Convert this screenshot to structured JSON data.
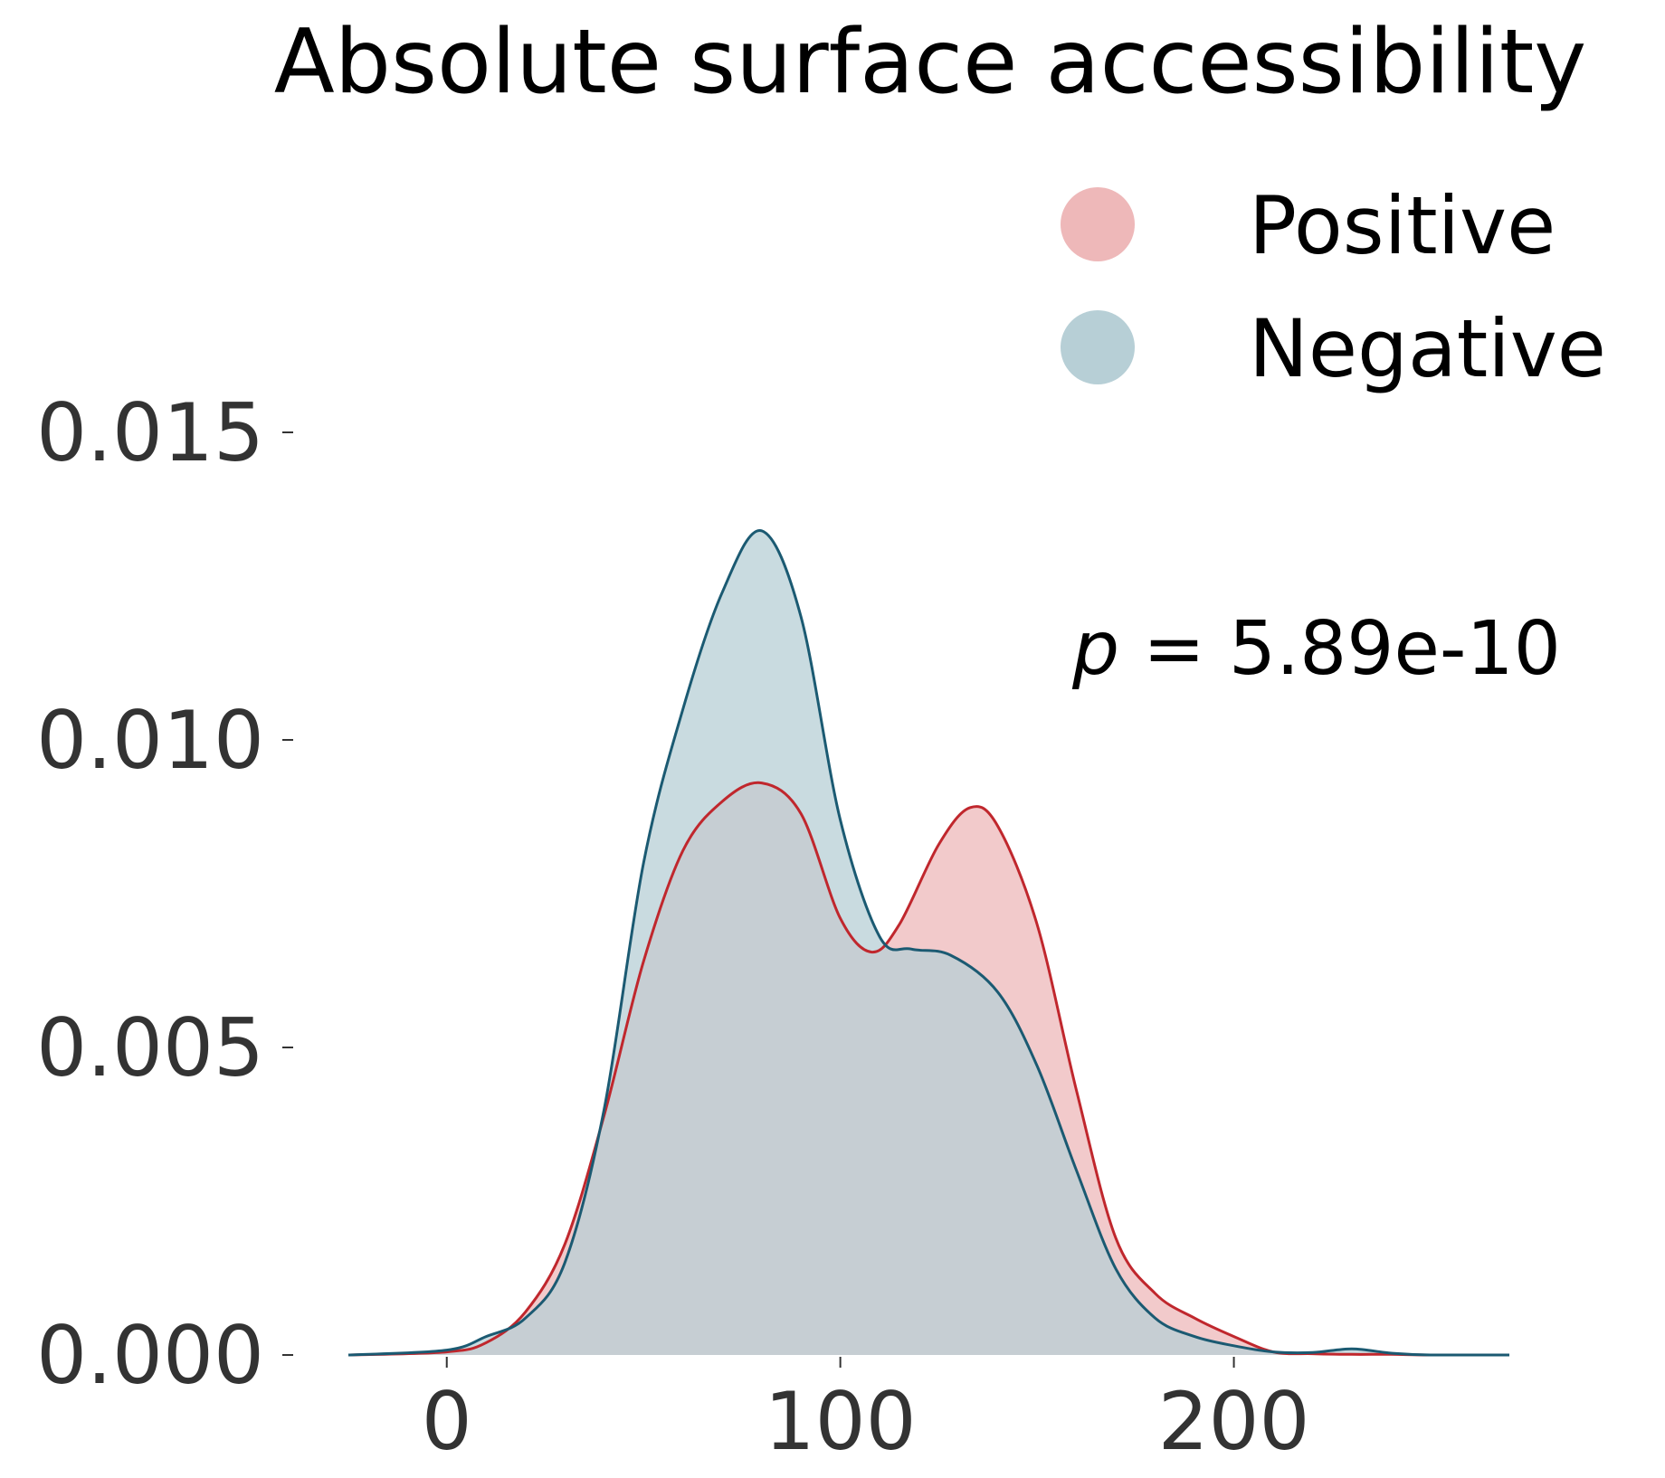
{
  "chart_data": {
    "type": "area",
    "title": "Absolute surface accessibility",
    "xlabel": "",
    "ylabel": "",
    "xlim": [
      -25,
      270
    ],
    "ylim": [
      0,
      0.0185
    ],
    "x_ticks": [
      0,
      100,
      200
    ],
    "x_tick_labels": [
      "0",
      "100",
      "200"
    ],
    "y_ticks": [
      0,
      0.005,
      0.01,
      0.015
    ],
    "y_tick_labels": [
      "0.000",
      "0.005",
      "0.010",
      "0.015"
    ],
    "grid": false,
    "legend_position": "top-right",
    "annotation": {
      "prefix": "p",
      "text": " = 5.89e-10"
    },
    "series": [
      {
        "name": "Positive",
        "fill_color": "#eeb8b9",
        "line_color": "#c0272d",
        "x": [
          -25,
          0,
          10,
          20,
          30,
          40,
          50,
          60,
          70,
          80,
          90,
          100,
          108,
          115,
          125,
          133,
          140,
          150,
          160,
          170,
          180,
          190,
          200,
          210,
          220,
          230,
          240,
          250,
          270
        ],
        "y": [
          0,
          5e-05,
          0.0002,
          0.0007,
          0.0018,
          0.0039,
          0.0064,
          0.0082,
          0.009,
          0.0093,
          0.0088,
          0.0071,
          0.00655,
          0.007,
          0.0083,
          0.0089,
          0.0086,
          0.007,
          0.0043,
          0.0019,
          0.001,
          0.0006,
          0.0003,
          5e-05,
          2e-05,
          1e-05,
          1e-05,
          0.0,
          0
        ]
      },
      {
        "name": "Negative",
        "fill_color": "#b7cfd6",
        "line_color": "#1b5a72",
        "x": [
          -25,
          0,
          10,
          20,
          30,
          40,
          50,
          60,
          70,
          80,
          90,
          100,
          110,
          118,
          128,
          140,
          150,
          160,
          170,
          180,
          190,
          200,
          210,
          220,
          230,
          240,
          250,
          270
        ],
        "y": [
          0,
          8e-05,
          0.0003,
          0.0006,
          0.0015,
          0.004,
          0.008,
          0.0105,
          0.0124,
          0.0134,
          0.012,
          0.0087,
          0.0068,
          0.0066,
          0.0065,
          0.0059,
          0.0047,
          0.003,
          0.0014,
          0.0006,
          0.0003,
          0.00015,
          5e-05,
          4e-05,
          0.0001,
          3e-05,
          0.0,
          0
        ]
      }
    ]
  }
}
